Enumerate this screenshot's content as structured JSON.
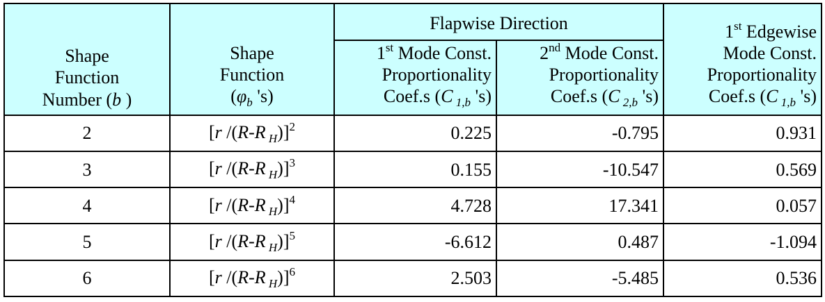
{
  "header": {
    "col1": {
      "line1": "Shape",
      "line2": "Function",
      "line3": "Number (",
      "var": "b",
      "close": " )"
    },
    "col2": {
      "line1": "Shape",
      "line2": "Function",
      "open": "(",
      "phi": "φ",
      "sub": "b",
      "close": " 's)"
    },
    "flapwise": "Flapwise Direction",
    "col3": {
      "pre": "1",
      "sup": "st",
      "post": " Mode Const.",
      "line2": "Proportionality",
      "coef": "Coef.s (",
      "C": "C",
      "sub": " 1,b",
      "close": " 's)"
    },
    "col4": {
      "pre": "2",
      "sup": "nd",
      "post": " Mode Const.",
      "line2": "Proportionality",
      "coef": "Coef.s (",
      "C": "C",
      "sub": " 2,b",
      "close": " 's)"
    },
    "col5": {
      "pre": "1",
      "sup": "st",
      "post": " Edgewise",
      "line2": "Mode Const.",
      "line3": "Proportionality",
      "coef": "Coef.s (",
      "C": "C",
      "sub": " 1,b",
      "close": " 's)"
    }
  },
  "formula": {
    "lb": "[",
    "r": "r",
    "slash": " /(",
    "R": "R",
    "dash": "-",
    "R2": "R",
    "H": " H",
    "rb": ")]"
  },
  "rows": [
    {
      "b": "2",
      "exp": "2",
      "c1": "0.225",
      "c2": "-0.795",
      "c3": "0.931"
    },
    {
      "b": "3",
      "exp": "3",
      "c1": "0.155",
      "c2": "-10.547",
      "c3": "0.569"
    },
    {
      "b": "4",
      "exp": "4",
      "c1": "4.728",
      "c2": "17.341",
      "c3": "0.057"
    },
    {
      "b": "5",
      "exp": "5",
      "c1": "-6.612",
      "c2": "0.487",
      "c3": "-1.094"
    },
    {
      "b": "6",
      "exp": "6",
      "c1": "2.503",
      "c2": "-5.485",
      "c3": "0.536"
    }
  ]
}
